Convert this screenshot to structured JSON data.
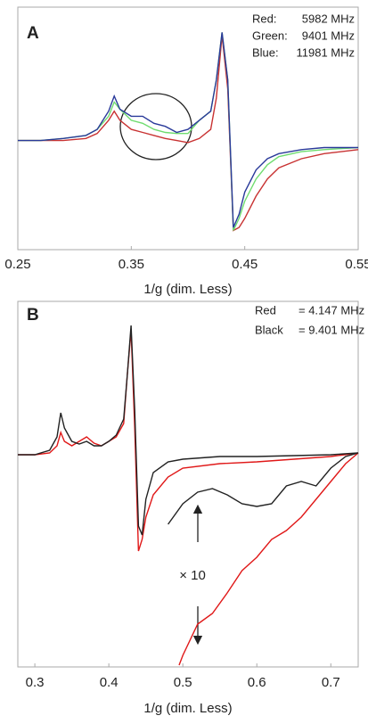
{
  "chart_data": [
    {
      "type": "line",
      "panel_label": "A",
      "x_label": "1/g (dim. Less)",
      "xlim": [
        0.25,
        0.55
      ],
      "xticks": [
        0.25,
        0.35,
        0.45,
        0.55
      ],
      "ylim": [
        -1.2,
        1.2
      ],
      "series": [
        {
          "name": "Red:",
          "label": "5982 MHz",
          "color": "#c83232",
          "x": [
            0.25,
            0.27,
            0.29,
            0.31,
            0.32,
            0.33,
            0.335,
            0.34,
            0.35,
            0.36,
            0.37,
            0.38,
            0.39,
            0.4,
            0.41,
            0.42,
            0.425,
            0.43,
            0.435,
            0.44,
            0.445,
            0.45,
            0.46,
            0.47,
            0.48,
            0.5,
            0.52,
            0.55
          ],
          "values": [
            -0.12,
            -0.12,
            -0.12,
            -0.1,
            -0.05,
            0.08,
            0.17,
            0.08,
            -0.01,
            -0.04,
            -0.07,
            -0.1,
            -0.12,
            -0.14,
            -0.1,
            -0.01,
            0.3,
            0.92,
            0.39,
            -1.01,
            -0.98,
            -0.89,
            -0.67,
            -0.5,
            -0.39,
            -0.3,
            -0.25,
            -0.21
          ]
        },
        {
          "name": "Green:",
          "label": "9401 MHz",
          "color": "#6fdc6f",
          "x": [
            0.25,
            0.27,
            0.29,
            0.31,
            0.32,
            0.33,
            0.335,
            0.34,
            0.35,
            0.36,
            0.37,
            0.38,
            0.39,
            0.4,
            0.41,
            0.42,
            0.425,
            0.43,
            0.435,
            0.44,
            0.445,
            0.45,
            0.46,
            0.47,
            0.48,
            0.5,
            0.52,
            0.55
          ],
          "values": [
            -0.12,
            -0.12,
            -0.1,
            -0.07,
            -0.01,
            0.12,
            0.26,
            0.19,
            0.08,
            0.05,
            -0.01,
            -0.04,
            -0.05,
            -0.05,
            0.08,
            0.17,
            0.48,
            0.95,
            0.48,
            -1.01,
            -0.89,
            -0.72,
            -0.5,
            -0.36,
            -0.28,
            -0.23,
            -0.21,
            -0.19
          ]
        },
        {
          "name": "Blue:",
          "label": "11981 MHz",
          "color": "#2a3a9a",
          "x": [
            0.25,
            0.27,
            0.29,
            0.31,
            0.32,
            0.33,
            0.335,
            0.34,
            0.35,
            0.36,
            0.37,
            0.38,
            0.39,
            0.4,
            0.41,
            0.42,
            0.425,
            0.43,
            0.435,
            0.44,
            0.445,
            0.45,
            0.46,
            0.47,
            0.48,
            0.5,
            0.52,
            0.55
          ],
          "values": [
            -0.12,
            -0.12,
            -0.1,
            -0.07,
            -0.01,
            0.17,
            0.32,
            0.19,
            0.12,
            0.12,
            0.05,
            0.02,
            -0.04,
            -0.01,
            0.08,
            0.17,
            0.48,
            0.95,
            0.48,
            -0.98,
            -0.85,
            -0.63,
            -0.41,
            -0.3,
            -0.25,
            -0.21,
            -0.19,
            -0.19
          ]
        }
      ]
    },
    {
      "type": "line",
      "panel_label": "B",
      "x_label": "1/g (dim. Less)",
      "annotation": "× 10",
      "xlim": [
        0.277,
        0.737
      ],
      "xticks": [
        0.3,
        0.4,
        0.5,
        0.6,
        0.7
      ],
      "ylim": [
        -2.38,
        1.72
      ],
      "series": [
        {
          "name": "Red",
          "label": "= 4.147 MHz",
          "color": "#e01818",
          "x": [
            0.277,
            0.3,
            0.32,
            0.33,
            0.335,
            0.34,
            0.35,
            0.36,
            0.37,
            0.38,
            0.39,
            0.4,
            0.41,
            0.42,
            0.425,
            0.43,
            0.435,
            0.44,
            0.445,
            0.45,
            0.46,
            0.48,
            0.5,
            0.55,
            0.6,
            0.65,
            0.7,
            0.737
          ],
          "values": [
            0,
            0,
            0.02,
            0.1,
            0.25,
            0.15,
            0.1,
            0.15,
            0.2,
            0.13,
            0.1,
            0.15,
            0.2,
            0.35,
            0.9,
            1.4,
            0.3,
            -1.08,
            -0.95,
            -0.7,
            -0.45,
            -0.25,
            -0.15,
            -0.1,
            -0.08,
            -0.05,
            -0.02,
            0.02
          ]
        },
        {
          "name": "Black",
          "label": "= 9.401 MHz",
          "color": "#222222",
          "x": [
            0.277,
            0.3,
            0.32,
            0.33,
            0.335,
            0.34,
            0.35,
            0.36,
            0.37,
            0.38,
            0.39,
            0.4,
            0.41,
            0.42,
            0.425,
            0.43,
            0.435,
            0.44,
            0.445,
            0.45,
            0.46,
            0.48,
            0.5,
            0.55,
            0.6,
            0.65,
            0.7,
            0.737
          ],
          "values": [
            0,
            0,
            0.05,
            0.2,
            0.47,
            0.3,
            0.15,
            0.12,
            0.15,
            0.1,
            0.1,
            0.15,
            0.22,
            0.4,
            0.9,
            1.45,
            0.5,
            -0.8,
            -0.9,
            -0.5,
            -0.2,
            -0.08,
            -0.05,
            -0.02,
            -0.02,
            -0.01,
            0,
            0.02
          ]
        },
        {
          "color": "#e01818",
          "x": [
            0.495,
            0.5,
            0.52,
            0.54,
            0.56,
            0.58,
            0.6,
            0.62,
            0.64,
            0.66,
            0.68,
            0.7,
            0.72,
            0.737
          ],
          "values": [
            -2.36,
            -2.25,
            -1.9,
            -1.78,
            -1.55,
            -1.3,
            -1.15,
            -0.95,
            -0.85,
            -0.7,
            -0.5,
            -0.3,
            -0.1,
            0.02
          ]
        },
        {
          "color": "#222222",
          "x": [
            0.48,
            0.5,
            0.52,
            0.54,
            0.56,
            0.58,
            0.6,
            0.62,
            0.64,
            0.66,
            0.68,
            0.7,
            0.72,
            0.737
          ],
          "values": [
            -0.78,
            -0.55,
            -0.42,
            -0.38,
            -0.45,
            -0.55,
            -0.58,
            -0.55,
            -0.35,
            -0.3,
            -0.35,
            -0.15,
            -0.02,
            0.02
          ]
        }
      ]
    }
  ]
}
